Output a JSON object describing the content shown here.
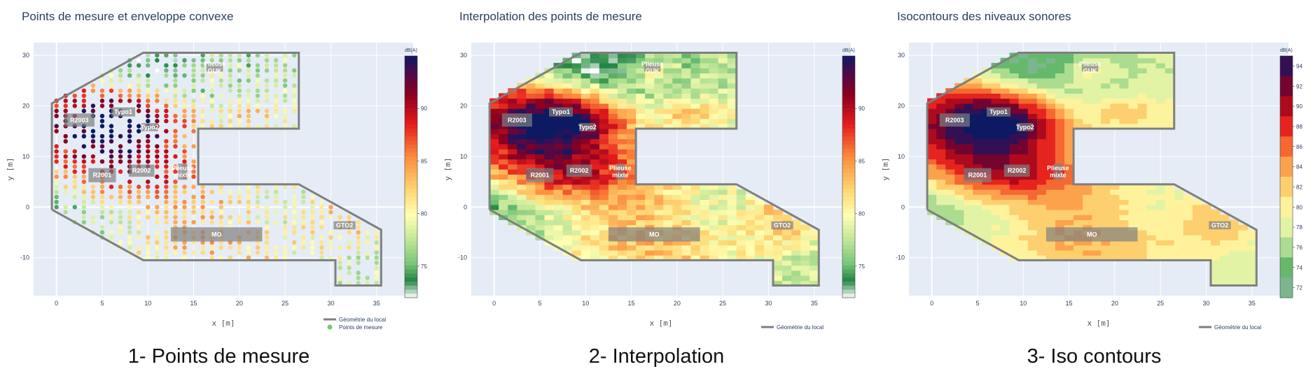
{
  "chart_data": [
    {
      "type": "scatter",
      "title": "Points de mesure et enveloppe convexe",
      "caption": "1- Points de mesure",
      "xlabel": "x [m]",
      "ylabel": "y [m]",
      "xlim": [
        -2.5,
        39
      ],
      "ylim": [
        -17.5,
        32.5
      ],
      "x_ticks": [
        0,
        5,
        10,
        15,
        20,
        25,
        30,
        35
      ],
      "y_ticks": [
        -10,
        0,
        10,
        20,
        30
      ],
      "colorbar": {
        "title": "dB(A)",
        "range": [
          72,
          95
        ],
        "ticks": [
          75,
          80,
          85,
          90
        ]
      },
      "legend": [
        "Géométrie du local",
        "Points de mesure"
      ],
      "legend_position": "bottom-right",
      "geometry": [
        [
          -0.5,
          -0.5
        ],
        [
          -0.5,
          20.5
        ],
        [
          9.5,
          30.5
        ],
        [
          26.5,
          30.5
        ],
        [
          26.5,
          15.5
        ],
        [
          15.5,
          15.5
        ],
        [
          15.5,
          4.5
        ],
        [
          26.5,
          4.5
        ],
        [
          35.5,
          -4.5
        ],
        [
          35.5,
          -15.5
        ],
        [
          30.5,
          -15.5
        ],
        [
          30.5,
          -10.5
        ],
        [
          9.5,
          -10.5
        ],
        [
          -0.5,
          -0.5
        ]
      ],
      "zones": [
        {
          "label": "R2003",
          "x": 2.5,
          "y": 17.2,
          "w": 3.3,
          "h": 2.6
        },
        {
          "label": "Typo1",
          "x": 7.3,
          "y": 18.8,
          "w": 2.6,
          "h": 1.8
        },
        {
          "label": "Typo2",
          "x": 10.2,
          "y": 15.8,
          "w": 1.8,
          "h": 1.6
        },
        {
          "label": "Plieuse GUK",
          "x": 17.3,
          "y": 27.6,
          "w": 1.8,
          "h": 1.6
        },
        {
          "label": "R2001",
          "x": 5.0,
          "y": 6.3,
          "w": 3.0,
          "h": 2.8
        },
        {
          "label": "R2002",
          "x": 9.3,
          "y": 7.2,
          "w": 2.8,
          "h": 2.4
        },
        {
          "label": "Plieuse mixte",
          "x": 13.8,
          "y": 7.0,
          "w": 1.0,
          "h": 3.2
        },
        {
          "label": "MO",
          "x": 17.5,
          "y": -5.4,
          "w": 10.0,
          "h": 2.8
        },
        {
          "label": "GTO2",
          "x": 31.5,
          "y": -3.6,
          "w": 2.4,
          "h": 1.6
        }
      ],
      "data_description": "Grid of measurement points (1 m spacing) inside the room geometry, each coloured by sound level in dB(A)"
    },
    {
      "type": "heatmap",
      "title": "Interpolation des points de mesure",
      "caption": "2- Interpolation",
      "xlabel": "x [m]",
      "ylabel": "y [m]",
      "xlim": [
        -2.5,
        39
      ],
      "ylim": [
        -17.5,
        32.5
      ],
      "x_ticks": [
        0,
        5,
        10,
        15,
        20,
        25,
        30,
        35
      ],
      "y_ticks": [
        -10,
        0,
        10,
        20,
        30
      ],
      "colorbar": {
        "title": "dB(A)",
        "range": [
          72,
          95
        ],
        "ticks": [
          75,
          80,
          85,
          90
        ]
      },
      "legend": [
        "Géométrie du local"
      ],
      "legend_position": "bottom-right",
      "zones": [
        {
          "label": "R2003",
          "x": 2.5,
          "y": 17.2,
          "w": 3.3,
          "h": 2.6
        },
        {
          "label": "Typo1",
          "x": 7.3,
          "y": 18.8,
          "w": 2.6,
          "h": 1.8
        },
        {
          "label": "Typo2",
          "x": 10.2,
          "y": 15.8,
          "w": 1.8,
          "h": 1.6
        },
        {
          "label": "Plieuse GUK",
          "x": 17.3,
          "y": 27.6,
          "w": 1.8,
          "h": 1.6
        },
        {
          "label": "R2001",
          "x": 5.0,
          "y": 6.3,
          "w": 3.0,
          "h": 2.8
        },
        {
          "label": "R2002",
          "x": 9.3,
          "y": 7.2,
          "w": 2.8,
          "h": 2.4
        },
        {
          "label": "Plieuse mixte",
          "x": 13.8,
          "y": 7.0,
          "w": 1.0,
          "h": 3.2
        },
        {
          "label": "MO",
          "x": 17.5,
          "y": -5.4,
          "w": 10.0,
          "h": 2.8
        },
        {
          "label": "GTO2",
          "x": 31.5,
          "y": -3.6,
          "w": 2.4,
          "h": 1.6
        }
      ]
    },
    {
      "type": "heatmap",
      "title": "Isocontours des niveaux sonores",
      "caption": "3- Iso contours",
      "xlabel": "x [m]",
      "ylabel": "y [m]",
      "xlim": [
        -2.5,
        39
      ],
      "ylim": [
        -17.5,
        32.5
      ],
      "x_ticks": [
        0,
        5,
        10,
        15,
        20,
        25,
        30,
        35
      ],
      "y_ticks": [
        -10,
        0,
        10,
        20,
        30
      ],
      "colorbar": {
        "title": "dB(A)",
        "range": [
          71,
          95
        ],
        "ticks": [
          72,
          74,
          76,
          78,
          80,
          82,
          84,
          86,
          88,
          90,
          92,
          94
        ]
      },
      "legend": [
        "Géométrie du local"
      ],
      "legend_position": "bottom-right",
      "zones": [
        {
          "label": "R2003",
          "x": 2.5,
          "y": 17.2,
          "w": 3.3,
          "h": 2.6
        },
        {
          "label": "Typo1",
          "x": 7.3,
          "y": 18.8,
          "w": 2.6,
          "h": 1.8
        },
        {
          "label": "Typo2",
          "x": 10.2,
          "y": 15.8,
          "w": 1.8,
          "h": 1.6
        },
        {
          "label": "Plieuse GUK",
          "x": 17.3,
          "y": 27.6,
          "w": 1.8,
          "h": 1.6
        },
        {
          "label": "R2001",
          "x": 5.0,
          "y": 6.3,
          "w": 3.0,
          "h": 2.8
        },
        {
          "label": "R2002",
          "x": 9.3,
          "y": 7.2,
          "w": 2.8,
          "h": 2.4
        },
        {
          "label": "Plieuse mixte",
          "x": 13.8,
          "y": 7.0,
          "w": 1.0,
          "h": 3.2
        },
        {
          "label": "MO",
          "x": 17.5,
          "y": -5.4,
          "w": 10.0,
          "h": 2.8
        },
        {
          "label": "GTO2",
          "x": 31.5,
          "y": -3.6,
          "w": 2.4,
          "h": 1.6
        }
      ]
    }
  ]
}
